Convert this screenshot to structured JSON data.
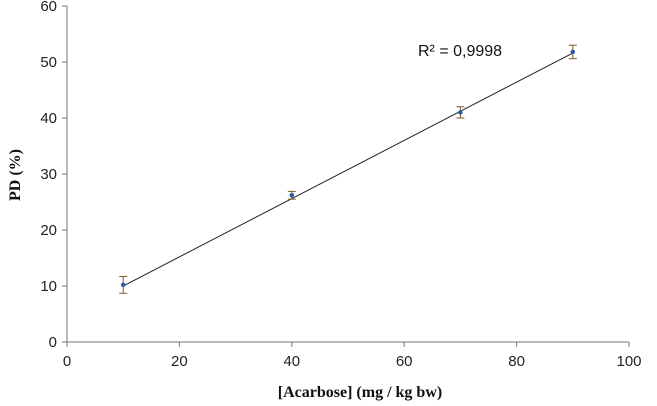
{
  "chart_data": {
    "type": "scatter",
    "title": "",
    "xlabel": "[Acarbose] (mg / kg bw)",
    "ylabel": "PD (%)",
    "xlim": [
      0,
      100
    ],
    "ylim": [
      0,
      60
    ],
    "xticks": [
      "0",
      "20",
      "40",
      "60",
      "80",
      "100"
    ],
    "yticks": [
      "0",
      "10",
      "20",
      "30",
      "40",
      "50",
      "60"
    ],
    "grid": false,
    "legend": "none",
    "series": [
      {
        "x": [
          10,
          40,
          70,
          90
        ],
        "y": [
          10.2,
          26.2,
          41.0,
          51.8
        ],
        "error": [
          1.5,
          0.7,
          1.0,
          1.2
        ],
        "marker_color": "#2E5DA8",
        "error_color": "#7A5A2A"
      }
    ],
    "trendline": {
      "type": "linear",
      "x_start": 10,
      "y_start": 10.0,
      "x_end": 90,
      "y_end": 51.6,
      "color": "#222222"
    },
    "annotations": [
      {
        "text": "R² = 0,9998"
      }
    ]
  }
}
